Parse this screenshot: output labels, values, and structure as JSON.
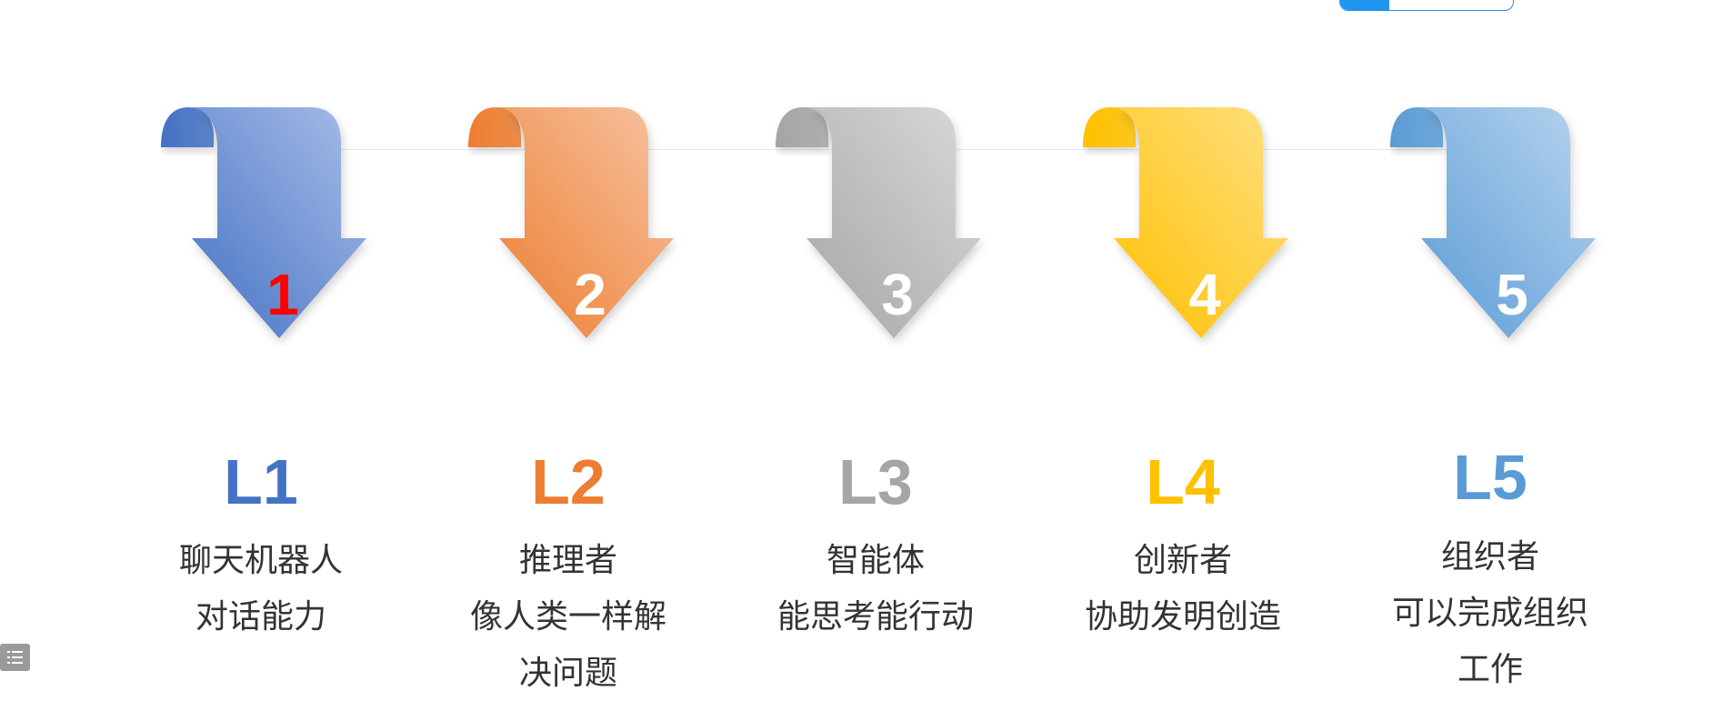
{
  "steps": [
    {
      "number": "1",
      "level": "L1",
      "title": "聊天机器人",
      "desc": "对话能力",
      "colors": {
        "light": "#A9BDE8",
        "dark": "#4472C4",
        "level": "#4472C4",
        "number": "#FF0000"
      }
    },
    {
      "number": "2",
      "level": "L2",
      "title": "推理者",
      "desc": "像人类一样解决问题",
      "colors": {
        "light": "#F7C3A1",
        "dark": "#ED7D31",
        "level": "#ED7D31",
        "number": "#FFFFFF"
      }
    },
    {
      "number": "3",
      "level": "L3",
      "title": "智能体",
      "desc": "能思考能行动",
      "colors": {
        "light": "#D9D9D9",
        "dark": "#A5A5A5",
        "level": "#A5A5A5",
        "number": "#FFFFFF"
      }
    },
    {
      "number": "4",
      "level": "L4",
      "title": "创新者",
      "desc": "协助发明创造",
      "colors": {
        "light": "#FFE083",
        "dark": "#FFC000",
        "level": "#FFC000",
        "number": "#FFFFFF"
      }
    },
    {
      "number": "5",
      "level": "L5",
      "title": "组织者",
      "desc": "可以完成组织工作",
      "colors": {
        "light": "#B7D4EF",
        "dark": "#5B9BD5",
        "level": "#5B9BD5",
        "number": "#FFFFFF"
      }
    }
  ],
  "icons": {
    "toc": "list-icon"
  }
}
